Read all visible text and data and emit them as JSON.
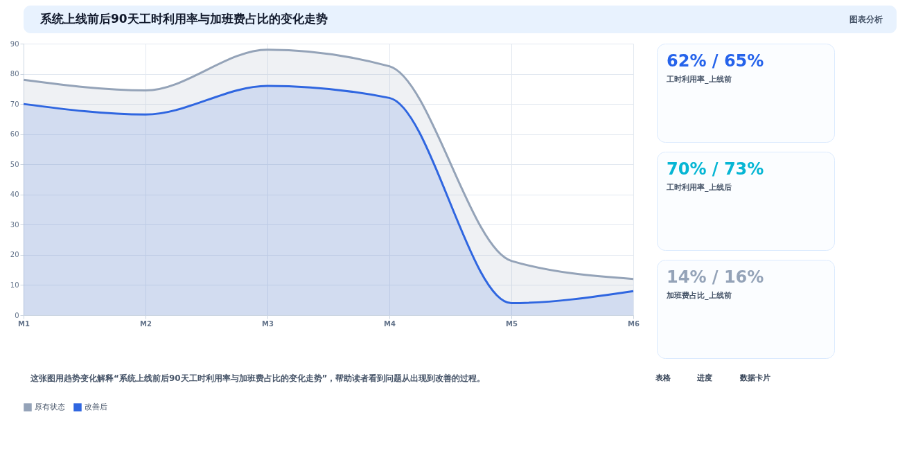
{
  "chart_data": [
    {
      "type": "area",
      "title": "系统上线前后90天工时利用率与加班费占比的变化走势",
      "annotations": [
        "图表分析",
        "这张图用趋势变化解释“系统上线前后90天工时利用率与加班费占比的变化走势”，帮助读者看到问题从出现到改善的过程。",
        "表格",
        "进度",
        "数据卡片"
      ],
      "categories": [
        "M1",
        "M2",
        "M3",
        "M4",
        "M5",
        "M6"
      ],
      "series": [
        {
          "name": "原有状态",
          "color": "#94a3b8",
          "values": [
            78,
            74.5,
            88,
            82.5,
            18,
            12
          ]
        },
        {
          "name": "改善后",
          "color": "#2f66e0",
          "values": [
            70,
            66.5,
            76,
            72,
            4,
            8
          ]
        }
      ],
      "ylim": [
        0,
        90
      ],
      "yticks": [
        0,
        10,
        20,
        30,
        40,
        50,
        60,
        70,
        80,
        90
      ],
      "grid": true,
      "legend": "bottom"
    },
    {
      "type": "other",
      "title": "62% / 65%",
      "subtitle": "工时利用率_上线前"
    },
    {
      "type": "other",
      "title": "70% / 73%",
      "subtitle": "工时利用率_上线后"
    },
    {
      "type": "other",
      "title": "14% / 16%",
      "subtitle": "加班费占比_上线前"
    }
  ]
}
